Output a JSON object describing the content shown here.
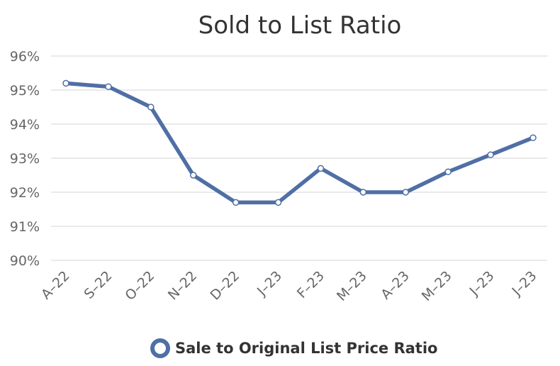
{
  "chart_data": {
    "type": "line",
    "title": "Sold to List Ratio",
    "xlabel": "",
    "ylabel": "",
    "categories": [
      "A–22",
      "S–22",
      "O–22",
      "N–22",
      "D–22",
      "J–23",
      "F–23",
      "M–23",
      "A–23",
      "M–23",
      "J–23",
      "J–23"
    ],
    "series": [
      {
        "name": "Sale to Original List Price Ratio",
        "values": [
          95.2,
          95.1,
          94.5,
          92.5,
          91.7,
          91.7,
          92.7,
          92.0,
          92.0,
          92.6,
          93.1,
          93.6
        ]
      }
    ],
    "ylim": [
      90,
      96
    ],
    "yticks": [
      90,
      91,
      92,
      93,
      94,
      95,
      96
    ],
    "ytick_labels": [
      "90%",
      "91%",
      "92%",
      "93%",
      "94%",
      "95%",
      "96%"
    ],
    "grid": true,
    "legend_position": "bottom",
    "colors": {
      "series": "#4f6fa5",
      "grid": "#e3e3e3",
      "marker_fill": "#ffffff"
    }
  }
}
